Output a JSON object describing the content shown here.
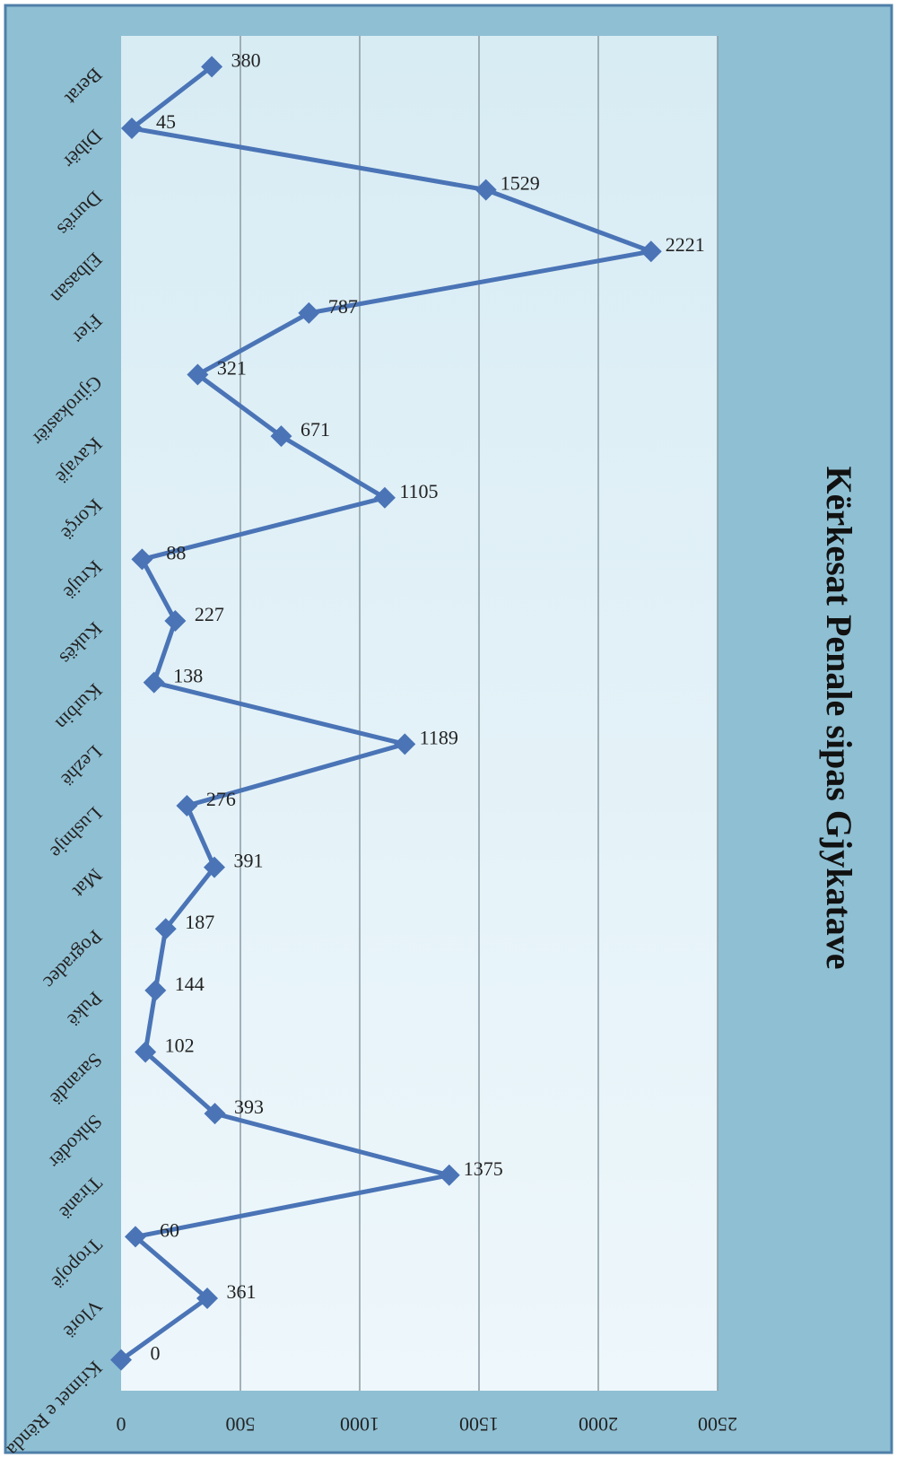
{
  "chart_data": {
    "type": "line",
    "title": "Kërkesat Penale sipas Gjykatave",
    "xlabel": "",
    "ylabel": "",
    "categories": [
      "Berat",
      "Dibër",
      "Durrës",
      "Elbasan",
      "Fier",
      "Gjirokastër",
      "Kavajë",
      "Korçë",
      "Krujë",
      "Kukës",
      "Kurbin",
      "Lezhë",
      "Lushnje",
      "Mat",
      "Pogradec",
      "Pukë",
      "Sarandë",
      "Shkodër",
      "Tiranë",
      "Tropojë",
      "Vlorë",
      "Krimet e Rënda"
    ],
    "category_labels": [
      "Berat",
      "Dibër",
      "Durrës",
      "Elbasan",
      "Fier",
      "Gjirokastër",
      "Kavajë",
      "Korçë",
      "Krujë",
      "Kukës",
      "Kurbin",
      "Lezhë",
      "Lushnje",
      "Mat",
      "Pogradec",
      "Pukë",
      "Sarandë",
      "Shkodër",
      "Tiranë",
      "Tropojë",
      "Vlorë",
      "Krimet e Rënda"
    ],
    "series": [
      {
        "values": [
          380,
          45,
          1529,
          2221,
          787,
          321,
          671,
          1105,
          88,
          227,
          138,
          1189,
          276,
          391,
          187,
          144,
          102,
          393,
          1375,
          60,
          361,
          0
        ]
      }
    ],
    "data_labels": [
      "380",
      "45",
      "1529",
      "2221",
      "787",
      "321",
      "671",
      "1105",
      "88",
      "227",
      "138",
      "1189",
      "276",
      "391",
      "187",
      "144",
      "102",
      "393",
      "1375",
      "60",
      "361",
      "0"
    ],
    "y_ticks": [
      "0",
      "500",
      "1000",
      "1500",
      "2000",
      "2500"
    ],
    "ylim": [
      0,
      2500
    ],
    "grid": true,
    "orientation": "rotated 90° clockwise",
    "colors": {
      "line": "#4a74b6",
      "frame": "#8fbfd3",
      "plot_bg": "#e6f3f9",
      "gridline": "#8a9aa2"
    }
  }
}
